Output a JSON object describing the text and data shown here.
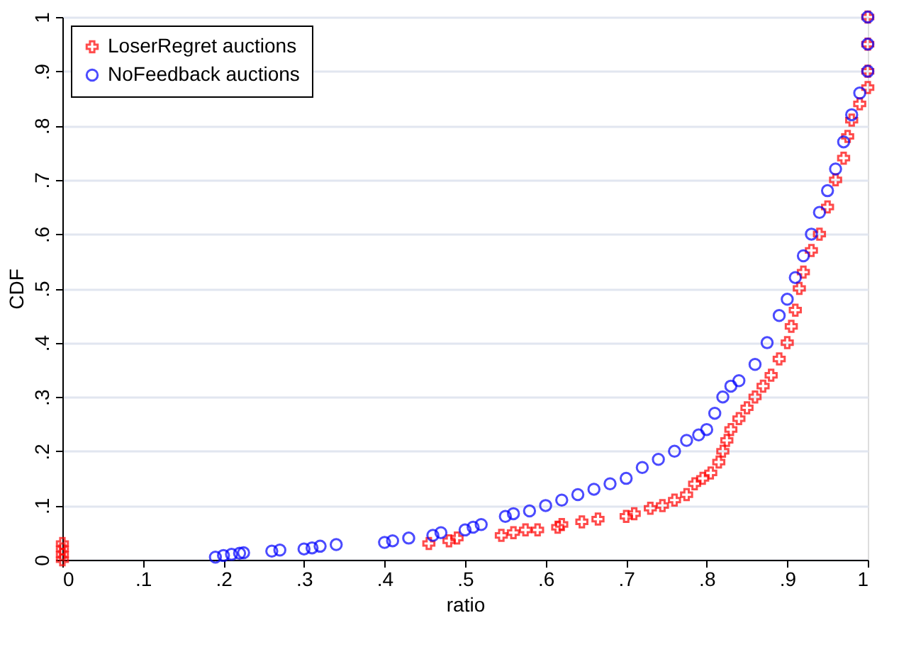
{
  "chart_data": {
    "type": "scatter",
    "xlabel": "ratio",
    "ylabel": "CDF",
    "xlim": [
      0,
      1
    ],
    "ylim": [
      0,
      1
    ],
    "xticks": [
      0,
      {
        "value": 0.1,
        "label": ".1"
      },
      {
        "value": 0.2,
        "label": ".2"
      },
      {
        "value": 0.3,
        "label": ".3"
      },
      {
        "value": 0.4,
        "label": ".4"
      },
      {
        "value": 0.5,
        "label": ".5"
      },
      {
        "value": 0.6,
        "label": ".6"
      },
      {
        "value": 0.7,
        "label": ".7"
      },
      {
        "value": 0.8,
        "label": ".8"
      },
      {
        "value": 0.9,
        "label": ".9"
      },
      1
    ],
    "yticks": [
      0,
      {
        "value": 0.1,
        "label": ".1"
      },
      {
        "value": 0.2,
        "label": ".2"
      },
      {
        "value": 0.3,
        "label": ".3"
      },
      {
        "value": 0.4,
        "label": ".4"
      },
      {
        "value": 0.5,
        "label": ".5"
      },
      {
        "value": 0.6,
        "label": ".6"
      },
      {
        "value": 0.7,
        "label": ".7"
      },
      {
        "value": 0.8,
        "label": ".8"
      },
      {
        "value": 0.9,
        "label": ".9"
      },
      1
    ],
    "grid": "y",
    "legend": "top left",
    "series": [
      {
        "name": "LoserRegret auctions",
        "color": "#ff0000",
        "marker": "cross",
        "x": [
          0,
          0,
          0,
          0,
          0.455,
          0.48,
          0.49,
          0.545,
          0.56,
          0.575,
          0.59,
          0.615,
          0.62,
          0.645,
          0.665,
          0.7,
          0.71,
          0.73,
          0.745,
          0.76,
          0.775,
          0.785,
          0.795,
          0.805,
          0.815,
          0.82,
          0.825,
          0.83,
          0.84,
          0.85,
          0.86,
          0.87,
          0.88,
          0.89,
          0.9,
          0.905,
          0.91,
          0.915,
          0.92,
          0.93,
          0.94,
          0.95,
          0.96,
          0.97,
          0.975,
          0.98,
          0.99,
          1,
          1,
          1,
          1
        ],
        "values": [
          0,
          0.01,
          0.02,
          0.03,
          0.03,
          0.035,
          0.04,
          0.045,
          0.05,
          0.055,
          0.055,
          0.06,
          0.065,
          0.07,
          0.075,
          0.08,
          0.085,
          0.095,
          0.1,
          0.11,
          0.12,
          0.14,
          0.15,
          0.16,
          0.18,
          0.2,
          0.22,
          0.24,
          0.26,
          0.28,
          0.3,
          0.32,
          0.34,
          0.37,
          0.4,
          0.43,
          0.46,
          0.5,
          0.53,
          0.57,
          0.6,
          0.65,
          0.7,
          0.74,
          0.78,
          0.81,
          0.84,
          0.87,
          0.9,
          0.95,
          1
        ]
      },
      {
        "name": "NoFeedback auctions",
        "color": "#0000ff",
        "marker": "circle",
        "x": [
          0.19,
          0.2,
          0.21,
          0.22,
          0.225,
          0.26,
          0.27,
          0.3,
          0.31,
          0.32,
          0.34,
          0.4,
          0.41,
          0.43,
          0.46,
          0.47,
          0.5,
          0.51,
          0.52,
          0.55,
          0.56,
          0.58,
          0.6,
          0.62,
          0.64,
          0.66,
          0.68,
          0.7,
          0.72,
          0.74,
          0.76,
          0.775,
          0.79,
          0.8,
          0.81,
          0.82,
          0.83,
          0.84,
          0.86,
          0.875,
          0.89,
          0.9,
          0.91,
          0.92,
          0.93,
          0.94,
          0.95,
          0.96,
          0.97,
          0.98,
          0.99,
          1,
          1,
          1
        ],
        "values": [
          0.005,
          0.008,
          0.01,
          0.012,
          0.013,
          0.016,
          0.018,
          0.02,
          0.022,
          0.025,
          0.028,
          0.032,
          0.035,
          0.04,
          0.045,
          0.05,
          0.055,
          0.06,
          0.065,
          0.08,
          0.085,
          0.09,
          0.1,
          0.11,
          0.12,
          0.13,
          0.14,
          0.15,
          0.17,
          0.185,
          0.2,
          0.22,
          0.23,
          0.24,
          0.27,
          0.3,
          0.32,
          0.33,
          0.36,
          0.4,
          0.45,
          0.48,
          0.52,
          0.56,
          0.6,
          0.64,
          0.68,
          0.72,
          0.77,
          0.82,
          0.86,
          0.9,
          0.95,
          1
        ]
      }
    ]
  }
}
